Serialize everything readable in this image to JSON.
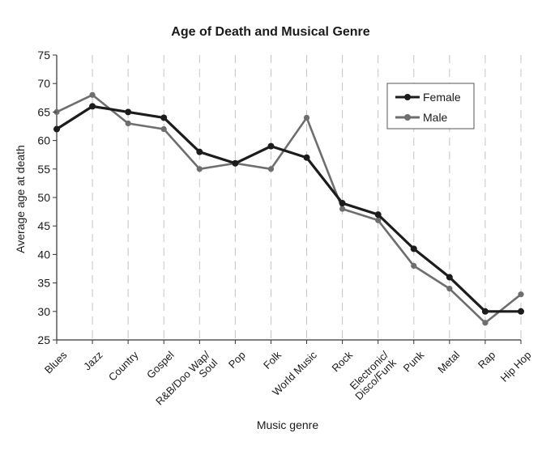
{
  "chart_data": {
    "type": "line",
    "title": "Age of Death and Musical Genre",
    "xlabel": "Music genre",
    "ylabel": "Average age at death",
    "ylim": [
      25,
      75
    ],
    "yticks": [
      25,
      30,
      35,
      40,
      45,
      50,
      55,
      60,
      65,
      70,
      75
    ],
    "categories": [
      [
        "Blues"
      ],
      [
        "Jazz"
      ],
      [
        "Country"
      ],
      [
        "Gospel"
      ],
      [
        "R&B/Doo Wap/",
        "Soul"
      ],
      [
        "Pop"
      ],
      [
        "Folk"
      ],
      [
        "World Music"
      ],
      [
        "Rock"
      ],
      [
        "Electronic/",
        "Disco/Funk"
      ],
      [
        "Punk"
      ],
      [
        "Metal"
      ],
      [
        "Rap"
      ],
      [
        "Hip Hop"
      ]
    ],
    "series": [
      {
        "name": "Female",
        "color": "#1c1c1c",
        "values": [
          62,
          66,
          65,
          64,
          58,
          56,
          59,
          57,
          49,
          47,
          41,
          36,
          30,
          30
        ]
      },
      {
        "name": "Male",
        "color": "#6e6e6e",
        "values": [
          65,
          68,
          63,
          62,
          55,
          56,
          55,
          64,
          48,
          46,
          38,
          34,
          28,
          33
        ]
      }
    ],
    "grid": "vertical dashed",
    "legend_position": "top-right"
  }
}
